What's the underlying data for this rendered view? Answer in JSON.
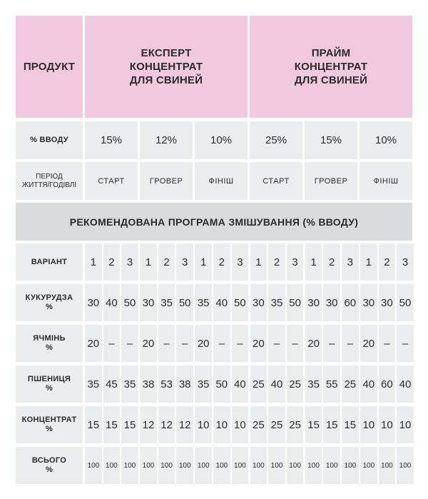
{
  "header": {
    "product_label": "ПРОДУКТ",
    "expert": [
      "ЕКСПЕРТ",
      "КОНЦЕНТРАТ",
      "ДЛЯ СВИНЕЙ"
    ],
    "prime": [
      "ПРАЙМ",
      "КОНЦЕНТРАТ",
      "ДЛЯ СВИНЕЙ"
    ]
  },
  "input_row": {
    "label": "% ВВОДУ",
    "values": [
      "15%",
      "12%",
      "10%",
      "25%",
      "15%",
      "10%"
    ]
  },
  "period_row": {
    "label": [
      "ПЕРІОД",
      "ЖИТТЯ/ГОДІВЛІ"
    ],
    "values": [
      "СТАРТ",
      "ГРОВЕР",
      "ФІНІШ",
      "СТАРТ",
      "ГРОВЕР",
      "ФІНІШ"
    ]
  },
  "band": {
    "title": "РЕКОМЕНДОВАНА ПРОГРАМА ЗМІШУВАННЯ (% ВВОДУ)"
  },
  "variant_row": {
    "label": "ВАРІАНТ",
    "values": [
      "1",
      "2",
      "3",
      "1",
      "2",
      "3",
      "1",
      "2",
      "3",
      "1",
      "2",
      "3",
      "1",
      "2",
      "3",
      "1",
      "2",
      "3"
    ]
  },
  "rows": [
    {
      "label": [
        "КУКУРУДЗА",
        "%"
      ],
      "values": [
        "30",
        "40",
        "50",
        "30",
        "35",
        "50",
        "35",
        "40",
        "50",
        "30",
        "35",
        "50",
        "30",
        "30",
        "60",
        "30",
        "30",
        "50"
      ]
    },
    {
      "label": [
        "ЯЧМІНЬ",
        "%"
      ],
      "values": [
        "20",
        "–",
        "–",
        "20",
        "–",
        "–",
        "20",
        "–",
        "–",
        "20",
        "–",
        "–",
        "20",
        "–",
        "–",
        "20",
        "–",
        "–"
      ]
    },
    {
      "label": [
        "ПШЕНИЦЯ",
        "%"
      ],
      "values": [
        "35",
        "45",
        "35",
        "38",
        "53",
        "38",
        "35",
        "50",
        "40",
        "25",
        "40",
        "25",
        "35",
        "55",
        "25",
        "40",
        "60",
        "40"
      ]
    },
    {
      "label": [
        "КОНЦЕНТРАТ",
        "%"
      ],
      "values": [
        "15",
        "15",
        "15",
        "12",
        "12",
        "12",
        "10",
        "10",
        "10",
        "25",
        "25",
        "25",
        "15",
        "15",
        "15",
        "10",
        "10",
        "10"
      ]
    }
  ],
  "total_row": {
    "label": [
      "ВСЬОГО",
      "%"
    ],
    "values": [
      "100",
      "100",
      "100",
      "100",
      "100",
      "100",
      "100",
      "100",
      "100",
      "100",
      "100",
      "100",
      "100",
      "100",
      "100",
      "100",
      "100",
      "100"
    ]
  },
  "colors": {
    "pink": "#f1c9de",
    "cell": "#ebeced",
    "band": "#d9dadb",
    "text": "#2b2b2b"
  }
}
